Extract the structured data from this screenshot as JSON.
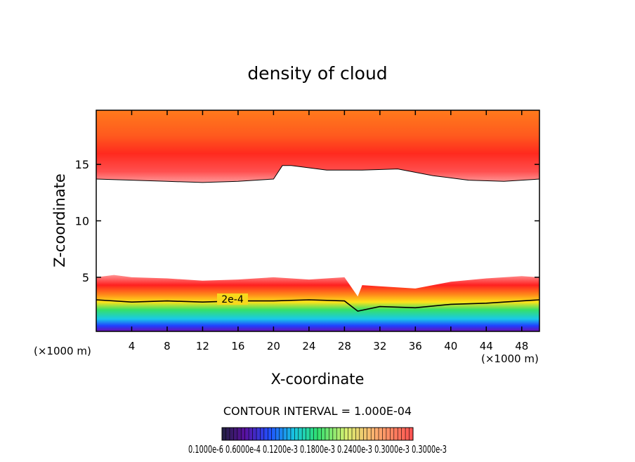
{
  "chart_data": {
    "type": "heatmap",
    "title": "density of cloud",
    "xlabel": "X-coordinate",
    "ylabel": "Z-coordinate",
    "x_unit_note": "(×1000 m)",
    "x_unit_note_right": "(×1000 m)",
    "xlim": [
      0,
      50
    ],
    "ylim": [
      0.2,
      19.8
    ],
    "x_ticks": [
      4,
      8,
      12,
      16,
      20,
      24,
      28,
      32,
      36,
      40,
      44,
      48
    ],
    "y_ticks": [
      5,
      10,
      15
    ],
    "contour_interval_text": "CONTOUR INTERVAL = 1.000E-04",
    "contour_label": "2e-4",
    "colorbar_labels_text": "0.1000e-6  0.6000e-4  0.1200e-3  0.1800e-3  0.2400e-3  0.3000e-3  0.3000e-3",
    "upper_layer": {
      "description_value_range": "high density",
      "bottom_boundary": {
        "x": [
          0,
          4,
          8,
          12,
          16,
          20,
          21,
          22,
          26,
          30,
          34,
          38,
          42,
          46,
          50
        ],
        "z": [
          13.7,
          13.6,
          13.5,
          13.4,
          13.5,
          13.7,
          14.9,
          14.9,
          14.5,
          14.5,
          14.6,
          14.0,
          13.6,
          13.5,
          13.7
        ]
      }
    },
    "lower_layer": {
      "top_boundary": {
        "x": [
          0,
          2,
          4,
          8,
          12,
          16,
          20,
          24,
          28,
          29.5,
          30,
          32,
          36,
          40,
          44,
          48,
          50
        ],
        "z": [
          5.0,
          5.2,
          5.0,
          4.9,
          4.7,
          4.8,
          5.0,
          4.8,
          5.0,
          3.3,
          4.3,
          4.2,
          4.0,
          4.6,
          4.9,
          5.1,
          5.0
        ]
      },
      "contour_2e-4": {
        "x": [
          0,
          4,
          8,
          12,
          16,
          20,
          24,
          28,
          29.5,
          32,
          36,
          40,
          44,
          48,
          50
        ],
        "z": [
          3.0,
          2.8,
          2.9,
          2.8,
          2.9,
          2.9,
          3.0,
          2.9,
          2.0,
          2.4,
          2.3,
          2.6,
          2.7,
          2.9,
          3.0
        ]
      }
    },
    "colors": {
      "white": "#ffffff",
      "red": "#ff2020",
      "orange": "#ff6a1c",
      "yellow": "#ffe21a",
      "green": "#34e06a",
      "cyan": "#19c9e8",
      "blue": "#2040ff",
      "purple": "#6a10b0"
    }
  }
}
